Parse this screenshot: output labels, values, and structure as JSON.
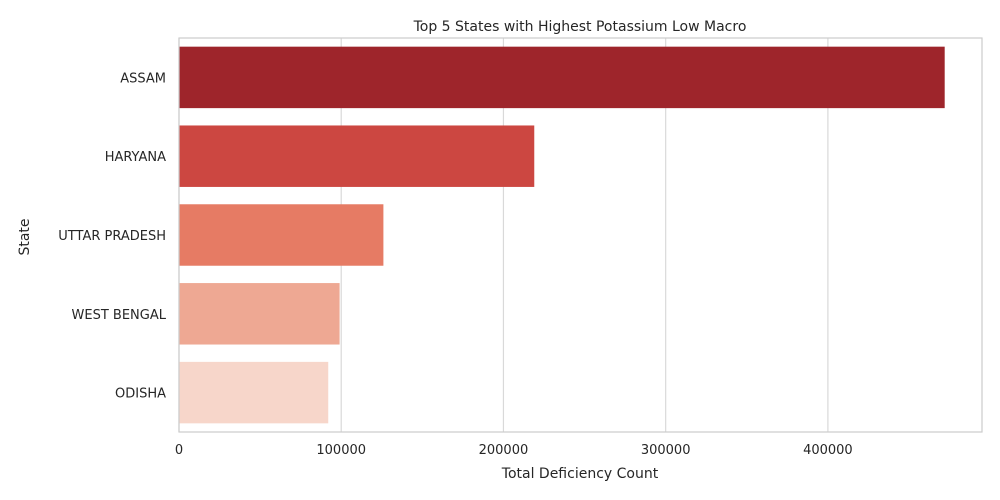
{
  "chart_data": {
    "type": "bar",
    "orientation": "horizontal",
    "title": "Top 5 States with Highest Potassium Low Macro",
    "xlabel": "Total Deficiency Count",
    "ylabel": "State",
    "categories": [
      "ASSAM",
      "HARYANA",
      "UTTAR PRADESH",
      "WEST BENGAL",
      "ODISHA"
    ],
    "values": [
      472000,
      219000,
      126000,
      99000,
      92000
    ],
    "colors": [
      "#9e252b",
      "#cc4741",
      "#e67b64",
      "#eea893",
      "#f7d6ca"
    ],
    "xlim": [
      0,
      495000
    ],
    "xticks": [
      0,
      100000,
      200000,
      300000,
      400000
    ],
    "xtick_labels": [
      "0",
      "100000",
      "200000",
      "300000",
      "400000"
    ],
    "grid": "x-axis",
    "legend": "none"
  }
}
